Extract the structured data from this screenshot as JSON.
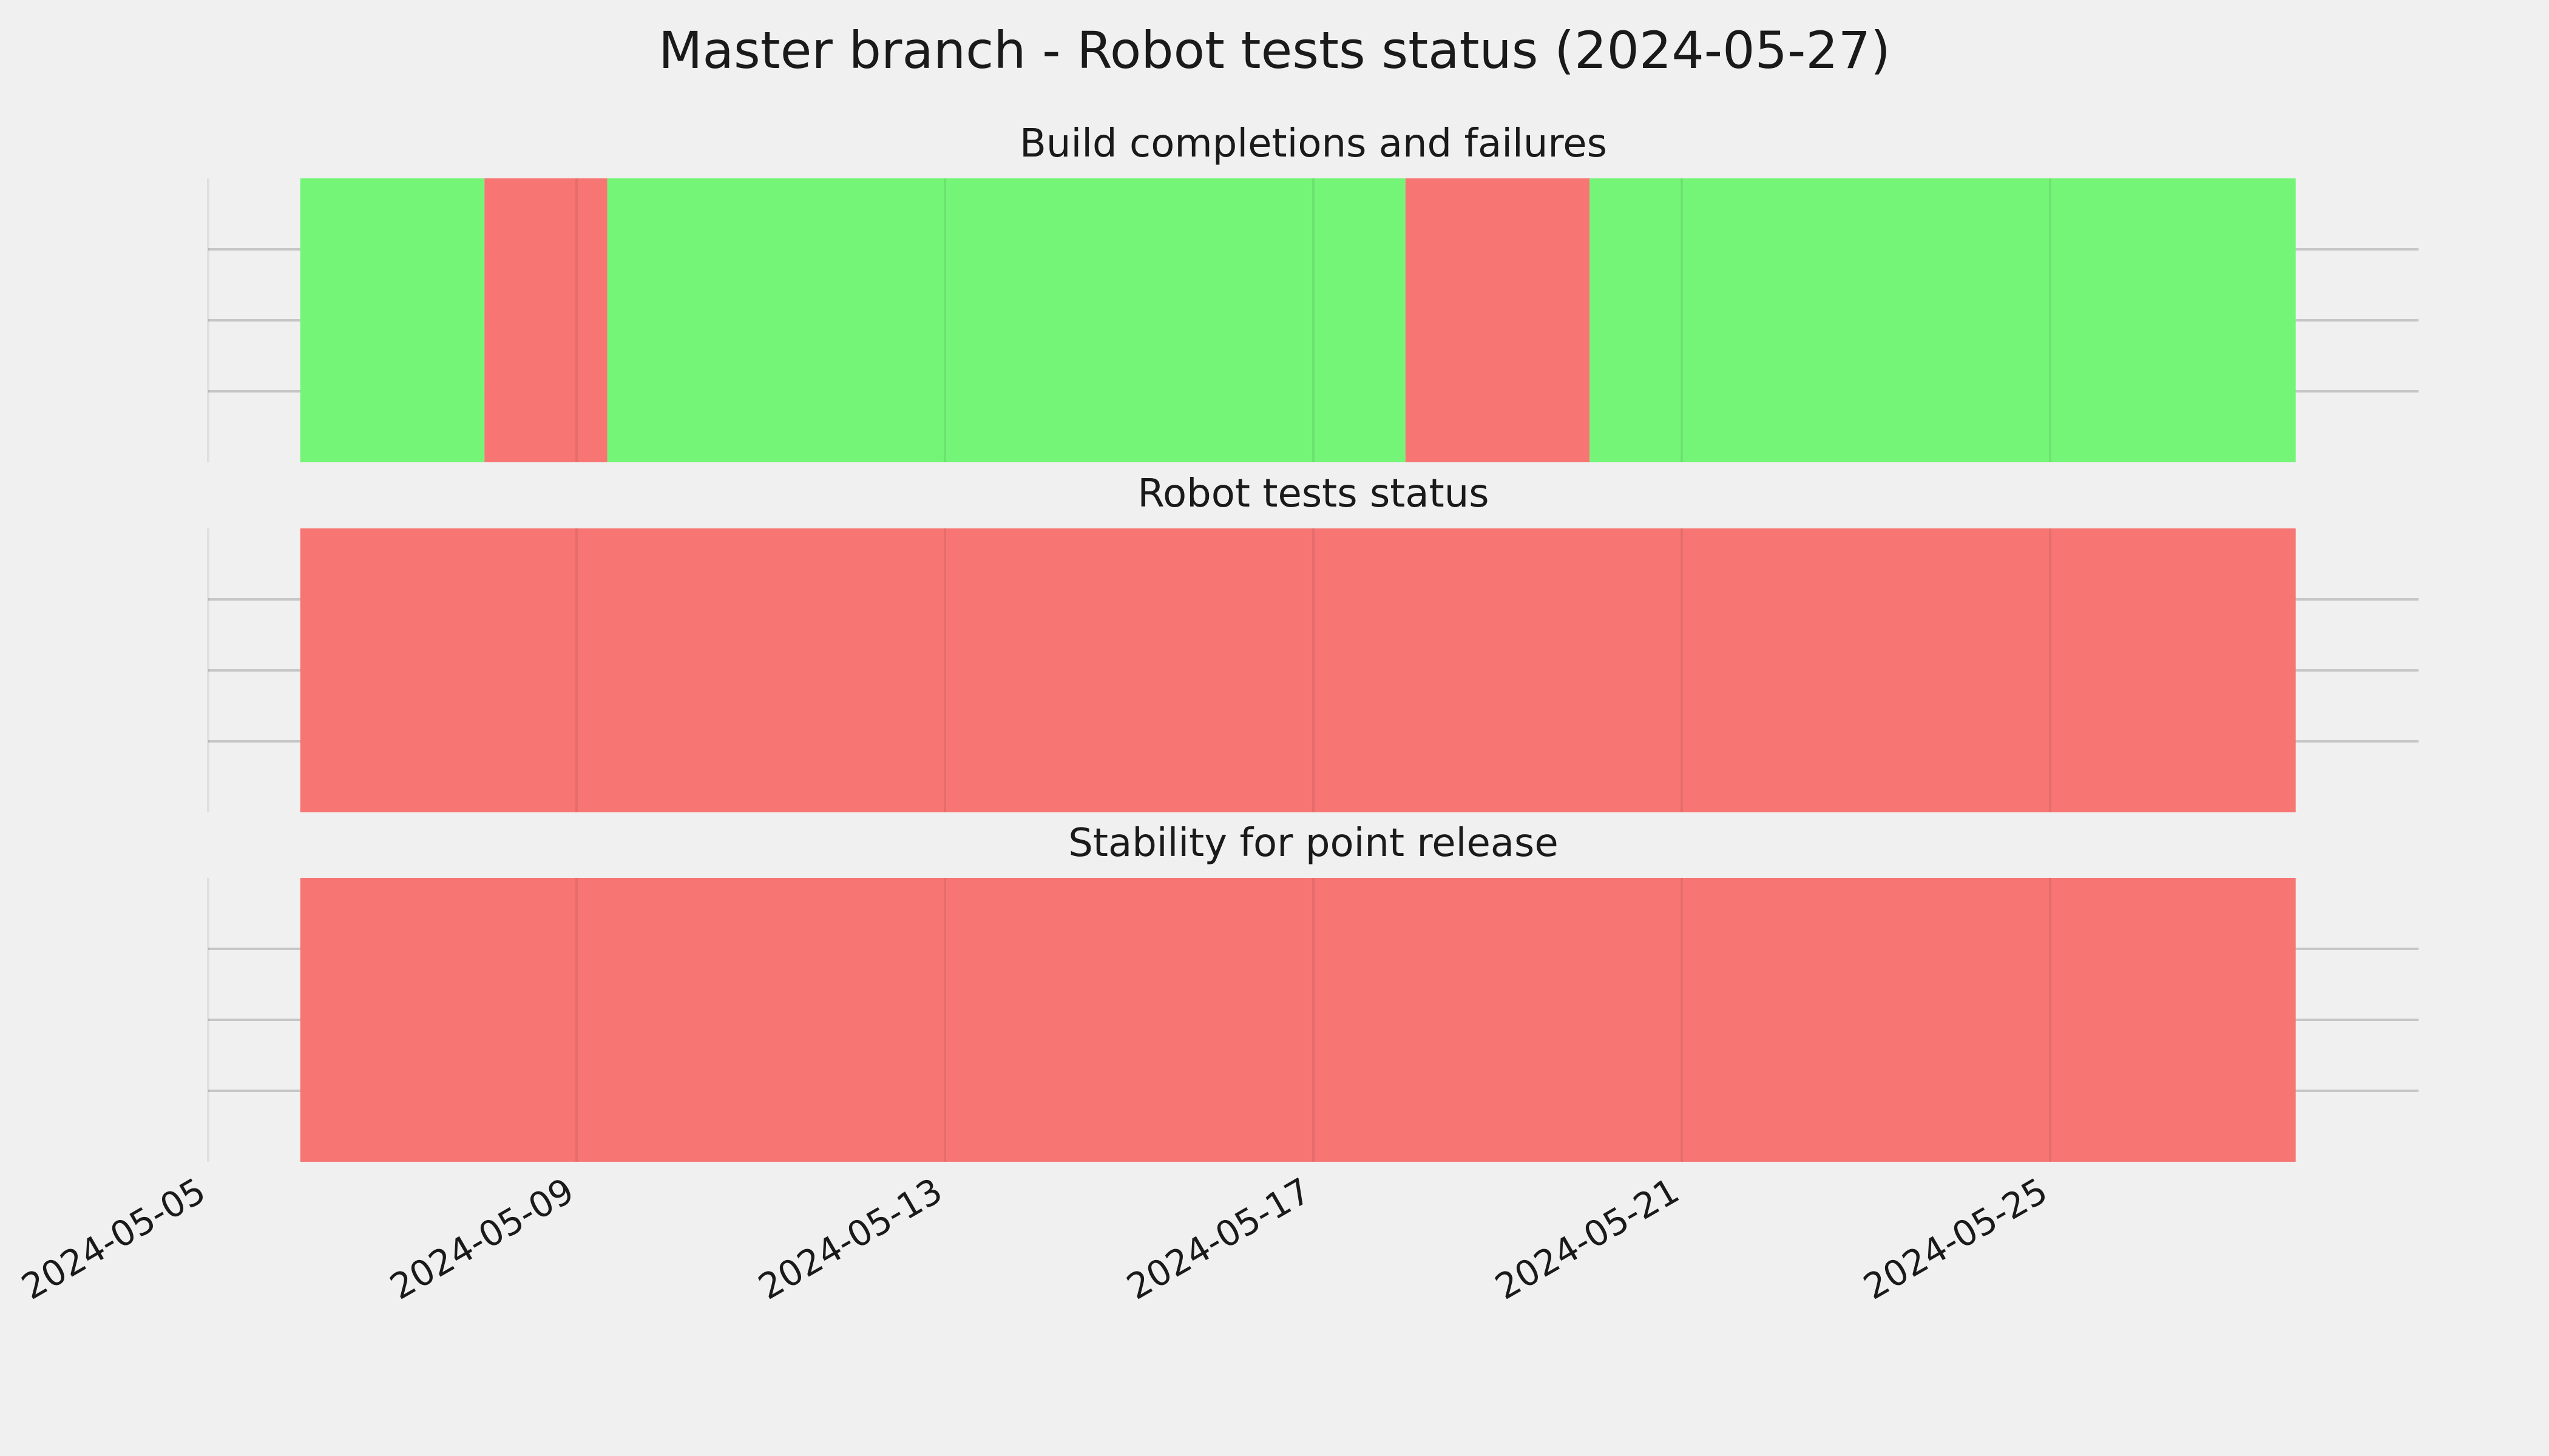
{
  "chart_data": {
    "type": "timeline",
    "title": "Master branch - Robot tests status (2024-05-27)",
    "x_range": [
      "2024-05-05",
      "2024-05-29"
    ],
    "x_ticks": [
      "2024-05-05",
      "2024-05-09",
      "2024-05-13",
      "2024-05-17",
      "2024-05-21",
      "2024-05-25"
    ],
    "grid": true,
    "colors": {
      "pass": "#75f577",
      "fail": "#f77674"
    },
    "panels": [
      {
        "title": "Build completions and failures",
        "segments": [
          {
            "start": "2024-05-06",
            "end": "2024-05-08",
            "status": "pass"
          },
          {
            "start": "2024-05-08",
            "end": "2024-05-09 08:00",
            "status": "fail"
          },
          {
            "start": "2024-05-09 08:00",
            "end": "2024-05-18",
            "status": "pass"
          },
          {
            "start": "2024-05-18",
            "end": "2024-05-20",
            "status": "fail"
          },
          {
            "start": "2024-05-20",
            "end": "2024-05-27 16:00",
            "status": "pass"
          }
        ]
      },
      {
        "title": "Robot tests status",
        "segments": [
          {
            "start": "2024-05-06",
            "end": "2024-05-27 16:00",
            "status": "fail"
          }
        ]
      },
      {
        "title": "Stability for point release",
        "segments": [
          {
            "start": "2024-05-06",
            "end": "2024-05-27 16:00",
            "status": "fail"
          }
        ]
      }
    ]
  }
}
